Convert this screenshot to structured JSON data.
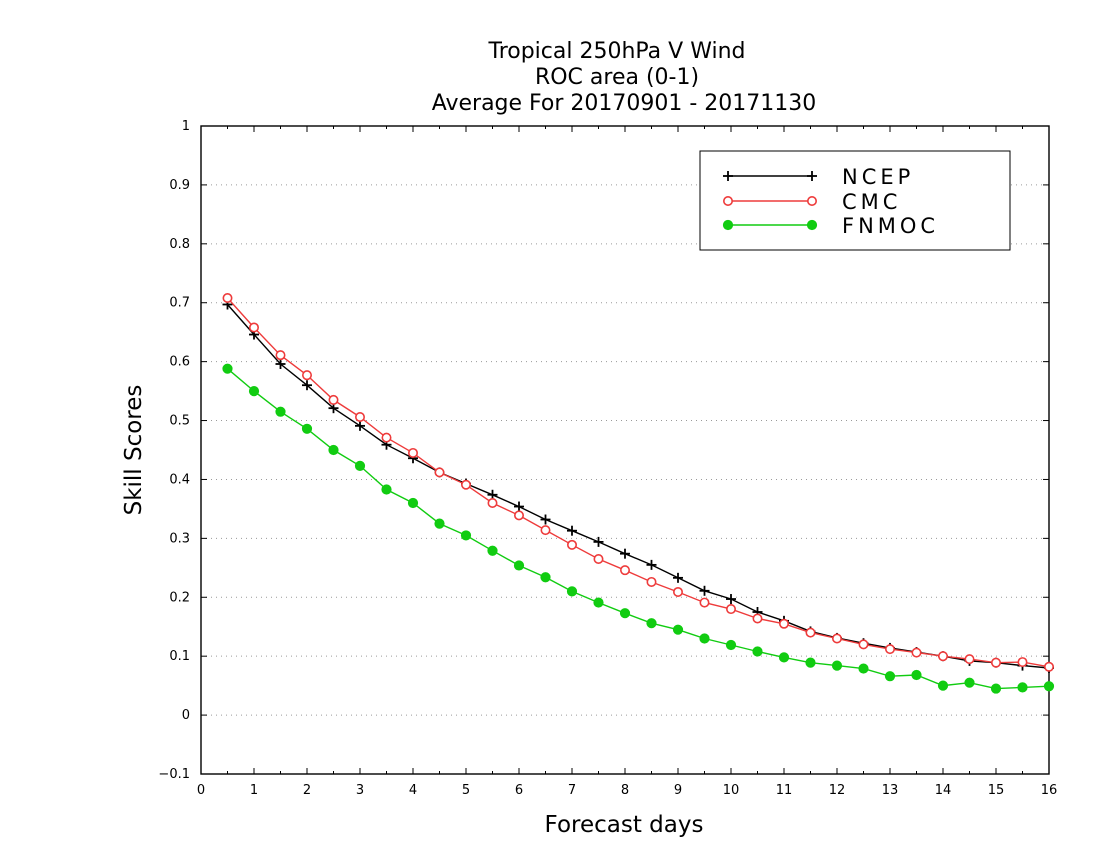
{
  "chart_data": {
    "type": "line",
    "title": [
      "Tropical 250hPa V Wind",
      "ROC area (0-1)",
      "Average For 20170901 - 20171130"
    ],
    "xlabel": "Forecast days",
    "ylabel": "Skill Scores",
    "xlim": [
      0,
      16
    ],
    "ylim": [
      -0.1,
      1
    ],
    "xticks": [
      "0",
      "1",
      "2",
      "3",
      "4",
      "5",
      "6",
      "7",
      "8",
      "9",
      "10",
      "11",
      "12",
      "13",
      "14",
      "15",
      "16"
    ],
    "yticks": [
      "−0.1",
      "0",
      "0.1",
      "0.2",
      "0.3",
      "0.4",
      "0.5",
      "0.6",
      "0.7",
      "0.8",
      "0.9",
      "1"
    ],
    "grid": "horizontal dotted",
    "legend_position": "top-right",
    "x": [
      0.5,
      1,
      1.5,
      2,
      2.5,
      3,
      3.5,
      4,
      4.5,
      5,
      5.5,
      6,
      6.5,
      7,
      7.5,
      8,
      8.5,
      9,
      9.5,
      10,
      10.5,
      11,
      11.5,
      12,
      12.5,
      13,
      13.5,
      14,
      14.5,
      15,
      15.5,
      16
    ],
    "series": [
      {
        "name": "NCEP",
        "color": "#000000",
        "marker": "plus",
        "values": [
          0.697,
          0.646,
          0.596,
          0.56,
          0.521,
          0.491,
          0.459,
          0.436,
          0.412,
          0.393,
          0.374,
          0.354,
          0.332,
          0.313,
          0.294,
          0.274,
          0.255,
          0.233,
          0.211,
          0.197,
          0.175,
          0.16,
          0.142,
          0.131,
          0.122,
          0.114,
          0.107,
          0.1,
          0.092,
          0.089,
          0.084,
          0.08
        ]
      },
      {
        "name": "CMC",
        "color": "#ee3b3b",
        "marker": "open-circle",
        "values": [
          0.708,
          0.658,
          0.611,
          0.577,
          0.535,
          0.506,
          0.471,
          0.445,
          0.412,
          0.391,
          0.36,
          0.339,
          0.314,
          0.289,
          0.265,
          0.246,
          0.226,
          0.209,
          0.191,
          0.18,
          0.164,
          0.155,
          0.14,
          0.13,
          0.12,
          0.112,
          0.106,
          0.1,
          0.095,
          0.089,
          0.09,
          0.082
        ]
      },
      {
        "name": "FNMOC",
        "color": "#11cc11",
        "marker": "filled-circle",
        "values": [
          0.588,
          0.55,
          0.515,
          0.486,
          0.45,
          0.423,
          0.383,
          0.36,
          0.325,
          0.305,
          0.279,
          0.254,
          0.234,
          0.21,
          0.191,
          0.173,
          0.156,
          0.145,
          0.13,
          0.119,
          0.108,
          0.098,
          0.089,
          0.084,
          0.079,
          0.066,
          0.068,
          0.05,
          0.055,
          0.045,
          0.047,
          0.049
        ]
      }
    ]
  }
}
